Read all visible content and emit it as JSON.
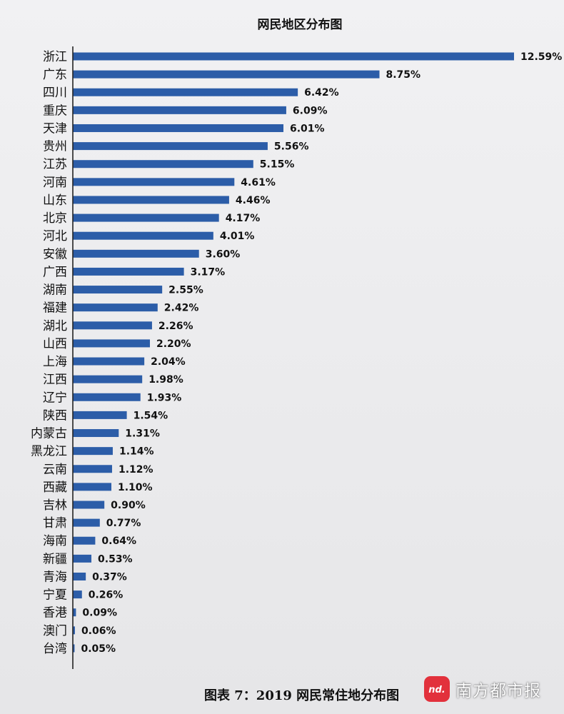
{
  "chart_data": {
    "type": "bar",
    "orientation": "horizontal",
    "title": "网民地区分布图",
    "categories": [
      "浙江",
      "广东",
      "四川",
      "重庆",
      "天津",
      "贵州",
      "江苏",
      "河南",
      "山东",
      "北京",
      "河北",
      "安徽",
      "广西",
      "湖南",
      "福建",
      "湖北",
      "山西",
      "上海",
      "江西",
      "辽宁",
      "陕西",
      "内蒙古",
      "黑龙江",
      "云南",
      "西藏",
      "吉林",
      "甘肃",
      "海南",
      "新疆",
      "青海",
      "宁夏",
      "香港",
      "澳门",
      "台湾"
    ],
    "values": [
      12.59,
      8.75,
      6.42,
      6.09,
      6.01,
      5.56,
      5.15,
      4.61,
      4.46,
      4.17,
      4.01,
      3.6,
      3.17,
      2.55,
      2.42,
      2.26,
      2.2,
      2.04,
      1.98,
      1.93,
      1.54,
      1.31,
      1.14,
      1.12,
      1.1,
      0.9,
      0.77,
      0.64,
      0.53,
      0.37,
      0.26,
      0.09,
      0.06,
      0.05
    ],
    "value_labels": [
      "12.59%",
      "8.75%",
      "6.42%",
      "6.09%",
      "6.01%",
      "5.56%",
      "5.15%",
      "4.61%",
      "4.46%",
      "4.17%",
      "4.01%",
      "3.60%",
      "3.17%",
      "2.55%",
      "2.42%",
      "2.26%",
      "2.20%",
      "2.04%",
      "1.98%",
      "1.93%",
      "1.54%",
      "1.31%",
      "1.14%",
      "1.12%",
      "1.10%",
      "0.90%",
      "0.77%",
      "0.64%",
      "0.53%",
      "0.37%",
      "0.26%",
      "0.09%",
      "0.06%",
      "0.05%"
    ],
    "unit": "%",
    "xlim": [
      0,
      12.59
    ],
    "grid": false,
    "legend": "none",
    "bar_color": "#2c5da8"
  },
  "caption": "图表  7：2019 网民常住地分布图",
  "watermark": {
    "logo_text": "nd.",
    "text": "南方都市报",
    "color": "#e2313c"
  }
}
